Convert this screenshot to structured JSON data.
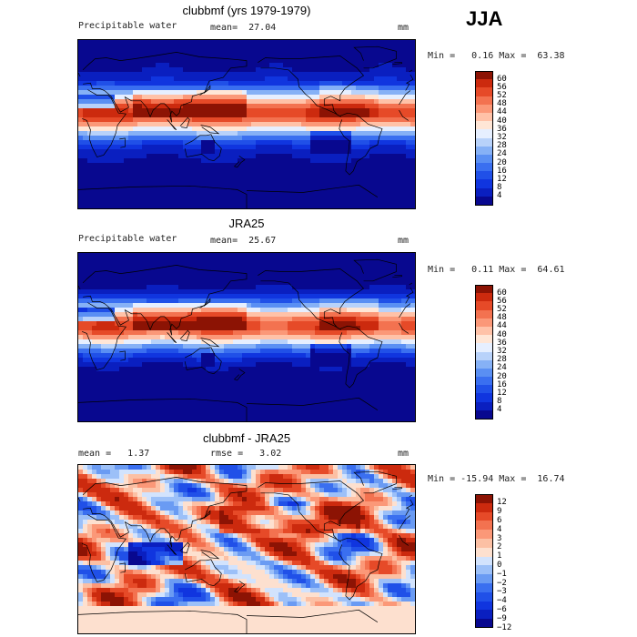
{
  "season": "JJA",
  "panels": [
    {
      "title": "clubbmf (yrs 1979-1979)",
      "left_label": "Precipitable water",
      "center_label": "mean=  27.04",
      "unit": "mm",
      "minmax": "Min =   0.16 Max =  63.38",
      "colorbar_labels": [
        "60",
        "56",
        "52",
        "48",
        "44",
        "40",
        "36",
        "32",
        "28",
        "24",
        "20",
        "16",
        "12",
        "8",
        "4"
      ]
    },
    {
      "title": "JRA25",
      "left_label": "Precipitable water",
      "center_label": "mean=  25.67",
      "unit": "mm",
      "minmax": "Min =   0.11 Max =  64.61",
      "colorbar_labels": [
        "60",
        "56",
        "52",
        "48",
        "44",
        "40",
        "36",
        "32",
        "28",
        "24",
        "20",
        "16",
        "12",
        "8",
        "4"
      ]
    },
    {
      "title": "clubbmf - JRA25",
      "left_label": "mean =   1.37",
      "center_label": "rmse =   3.02",
      "unit": "mm",
      "minmax": "Min = -15.94 Max =  16.74",
      "colorbar_labels": [
        "12",
        "9",
        "6",
        "4",
        "3",
        "2",
        "1",
        "0",
        "−1",
        "−2",
        "−3",
        "−4",
        "−6",
        "−9",
        "−12"
      ]
    }
  ],
  "colors": {
    "field_scale": [
      "#08088f",
      "#0a1fc0",
      "#1035df",
      "#2050e8",
      "#3a6ff0",
      "#5a8ff3",
      "#86b1f6",
      "#b8d2fa",
      "#e6efff",
      "#ffe6d6",
      "#ffc2a8",
      "#fb9878",
      "#f37250",
      "#e64a28",
      "#cc2a0e",
      "#8c1304"
    ],
    "diff_scale": [
      "#08088f",
      "#0a1fc0",
      "#1035df",
      "#2050e8",
      "#3a6ff0",
      "#6a9bf3",
      "#9cc0f8",
      "#d2e3fd",
      "#fde0cf",
      "#fcc0a4",
      "#fb9878",
      "#f37250",
      "#e64a28",
      "#cc2a0e",
      "#8c1304"
    ]
  },
  "chart_data": [
    {
      "type": "heatmap",
      "title": "clubbmf (yrs 1979-1979)",
      "field": "Precipitable water",
      "units": "mm",
      "mean": 27.04,
      "min": 0.16,
      "max": 63.38,
      "levels": [
        4,
        8,
        12,
        16,
        20,
        24,
        28,
        32,
        36,
        40,
        44,
        48,
        52,
        56,
        60
      ]
    },
    {
      "type": "heatmap",
      "title": "JRA25",
      "field": "Precipitable water",
      "units": "mm",
      "mean": 25.67,
      "min": 0.11,
      "max": 64.61,
      "levels": [
        4,
        8,
        12,
        16,
        20,
        24,
        28,
        32,
        36,
        40,
        44,
        48,
        52,
        56,
        60
      ]
    },
    {
      "type": "heatmap",
      "title": "clubbmf - JRA25",
      "units": "mm",
      "mean": 1.37,
      "rmse": 3.02,
      "min": -15.94,
      "max": 16.74,
      "levels": [
        -12,
        -9,
        -6,
        -4,
        -3,
        -2,
        -1,
        0,
        1,
        2,
        3,
        4,
        6,
        9,
        12
      ]
    }
  ]
}
